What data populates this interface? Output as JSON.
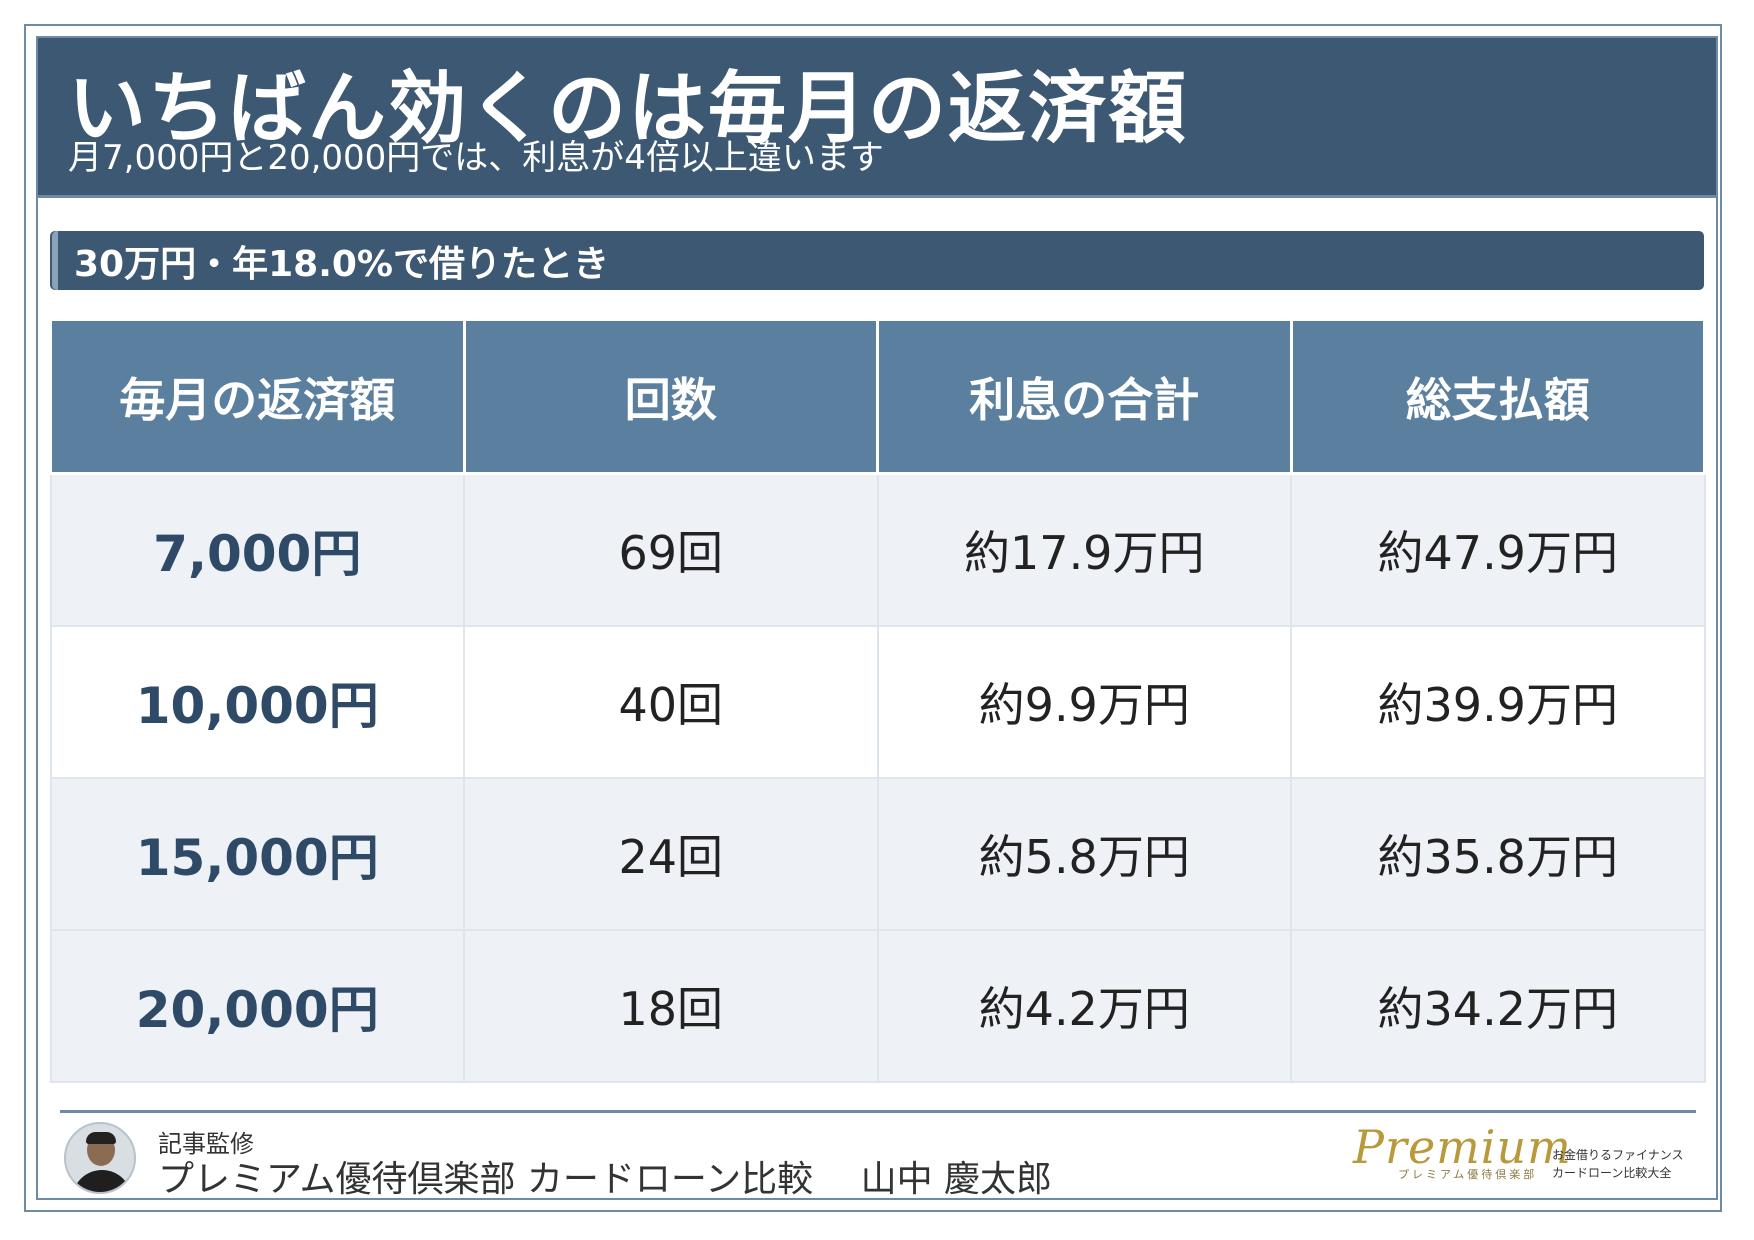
{
  "header": {
    "title": "いちばん効くのは毎月の返済額",
    "subtitle": "月7,000円と20,000円では、利息が4倍以上違います"
  },
  "condition_band": "30万円・年18.0%で借りたとき",
  "table": {
    "headers": [
      "毎月の返済額",
      "回数",
      "利息の合計",
      "総支払額"
    ],
    "rows": [
      [
        "7,000円",
        "69回",
        "約17.9万円",
        "約47.9万円"
      ],
      [
        "10,000円",
        "40回",
        "約9.9万円",
        "約39.9万円"
      ],
      [
        "15,000円",
        "24回",
        "約5.8万円",
        "約35.8万円"
      ],
      [
        "20,000円",
        "18回",
        "約4.2万円",
        "約34.2万円"
      ]
    ]
  },
  "footer": {
    "supervise_label": "記事監修",
    "supervisor": "プレミアム優待倶楽部 カードローン比較　 山中 慶太郎",
    "logo": {
      "script": "Premium",
      "sub": "プレミアム優待倶楽部",
      "tagline_1": "お金借りるファイナンス",
      "tagline_2": "カードローン比較大全"
    }
  },
  "colors": {
    "header_bg": "#3d5873",
    "table_header_bg": "#5b7f9e",
    "row_alt_bg": "#eef2f7",
    "amount_text": "#2f4a66",
    "logo_gold": "#b89a3c"
  }
}
